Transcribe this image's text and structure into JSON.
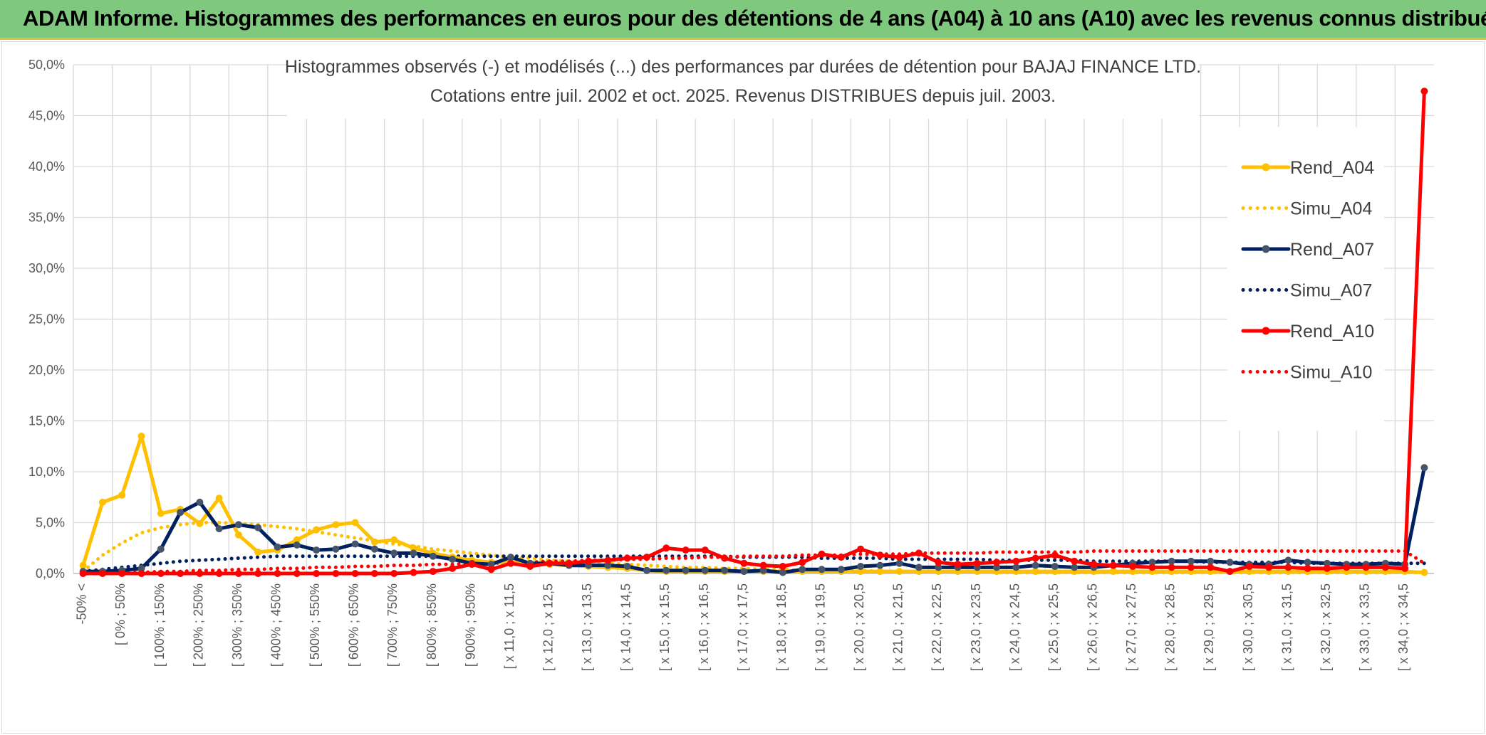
{
  "banner": {
    "title": "ADAM Informe. Histogrammes des performances en euros pour des détentions de 4 ans (A04) à 10 ans (A10) avec les revenus connus distribués",
    "bg_color": "#7fc97f"
  },
  "chart_data": {
    "type": "line",
    "title": "Histogrammes observés (-) et modélisés (...) des performances par durées de détention pour BAJAJ FINANCE LTD.",
    "subtitle": "Cotations entre juil. 2002 et oct. 2025. Revenus DISTRIBUES depuis juil. 2003.",
    "xlabel": "",
    "ylabel": "",
    "ylim": [
      0,
      50
    ],
    "y_ticks": [
      "0,0%",
      "5,0%",
      "10,0%",
      "15,0%",
      "20,0%",
      "25,0%",
      "30,0%",
      "35,0%",
      "40,0%",
      "45,0%",
      "50,0%"
    ],
    "grid": true,
    "legend_position": "right",
    "category_count": 70,
    "x_tick_labels": [
      "-50% <",
      "[ 0% ; 50%",
      "[ 100% ; 150%",
      "[ 200% ; 250%",
      "[ 300% ; 350%",
      "[ 400% ; 450%",
      "[ 500% ; 550%",
      "[ 600% ; 650%",
      "[ 700% ; 750%",
      "[ 800% ; 850%",
      "[ 900% ; 950%",
      "[ x 11,0 ; x 11,5",
      "[ x 12,0 ; x 12,5",
      "[ x 13,0 ; x 13,5",
      "[ x 14,0 ; x 14,5",
      "[ x 15,0 ; x 15,5",
      "[ x 16,0 ; x 16,5",
      "[ x 17,0 ; x 17,5",
      "[ x 18,0 ; x 18,5",
      "[ x 19,0 ; x 19,5",
      "[ x 20,0 ; x 20,5",
      "[ x 21,0 ; x 21,5",
      "[ x 22,0 ; x 22,5",
      "[ x 23,0 ; x 23,5",
      "[ x 24,0 ; x 24,5",
      "[ x 25,0 ; x 25,5",
      "[ x 26,0 ; x 26,5",
      "[ x 27,0 ; x 27,5",
      "[ x 28,0 ; x 28,5",
      "[ x 29,0 ; x 29,5",
      "[ x 30,0 ; x 30,5",
      "[ x 31,0 ; x 31,5",
      "[ x 32,0 ; x 32,5",
      "[ x 33,0 ; x 33,5",
      "[ x 34,0 ; x 34,5"
    ],
    "series": [
      {
        "name": "Rend_A04",
        "color": "#ffc000",
        "style": "solid",
        "marker": true,
        "values": [
          0.8,
          7.0,
          7.7,
          13.5,
          5.9,
          6.3,
          4.9,
          7.4,
          3.8,
          2.1,
          2.3,
          3.3,
          4.3,
          4.8,
          5.0,
          3.1,
          3.3,
          2.5,
          2.0,
          1.6,
          1.3,
          1.1,
          1.1,
          1.0,
          0.9,
          0.8,
          0.7,
          0.6,
          0.5,
          0.3,
          0.2,
          0.2,
          0.2,
          0.2,
          0.2,
          0.2,
          0.2,
          0.2,
          0.2,
          0.2,
          0.2,
          0.2,
          0.2,
          0.2,
          0.2,
          0.2,
          0.2,
          0.2,
          0.2,
          0.2,
          0.2,
          0.2,
          0.2,
          0.2,
          0.2,
          0.2,
          0.2,
          0.2,
          0.2,
          0.2,
          0.2,
          0.2,
          0.2,
          0.2,
          0.2,
          0.2,
          0.2,
          0.2,
          0.2,
          0.1
        ]
      },
      {
        "name": "Simu_A04",
        "color": "#ffc000",
        "style": "dotted",
        "marker": false,
        "values": [
          0.2,
          1.8,
          3.0,
          4.0,
          4.5,
          4.8,
          5.0,
          5.0,
          4.9,
          4.8,
          4.6,
          4.4,
          4.1,
          3.8,
          3.5,
          3.2,
          2.9,
          2.7,
          2.4,
          2.2,
          2.0,
          1.8,
          1.6,
          1.5,
          1.3,
          1.2,
          1.1,
          1.0,
          0.9,
          0.8,
          0.7,
          0.6,
          0.6,
          0.5,
          0.5,
          0.4,
          0.4,
          0.3,
          0.3,
          0.3,
          0.3,
          0.2,
          0.2,
          0.2,
          0.2,
          0.2,
          0.2,
          0.1,
          0.1,
          0.1,
          0.1,
          0.1,
          0.1,
          0.1,
          0.1,
          0.1,
          0.1,
          0.1,
          0.1,
          0.1,
          0.1,
          0.1,
          0.1,
          0.1,
          0.1,
          0.1,
          0.1,
          0.1,
          0.1,
          0.1
        ]
      },
      {
        "name": "Rend_A07",
        "color": "#002060",
        "style": "solid",
        "marker": true,
        "values": [
          0.2,
          0.2,
          0.3,
          0.5,
          2.4,
          6.0,
          7.0,
          4.4,
          4.8,
          4.5,
          2.6,
          2.8,
          2.3,
          2.4,
          2.9,
          2.4,
          2.0,
          2.0,
          1.7,
          1.4,
          1.0,
          0.9,
          1.6,
          1.0,
          1.0,
          0.8,
          0.8,
          0.8,
          0.7,
          0.3,
          0.3,
          0.3,
          0.3,
          0.3,
          0.2,
          0.3,
          0.1,
          0.4,
          0.4,
          0.4,
          0.7,
          0.8,
          1.0,
          0.6,
          0.6,
          0.6,
          0.6,
          0.6,
          0.6,
          0.8,
          0.7,
          0.6,
          0.6,
          0.8,
          1.0,
          1.1,
          1.2,
          1.2,
          1.2,
          1.1,
          0.9,
          0.9,
          1.3,
          1.1,
          1.0,
          0.9,
          0.9,
          1.0,
          0.9,
          10.4
        ]
      },
      {
        "name": "Simu_A07",
        "color": "#002060",
        "style": "dotted",
        "marker": false,
        "values": [
          0.2,
          0.4,
          0.6,
          0.8,
          1.0,
          1.2,
          1.3,
          1.4,
          1.5,
          1.6,
          1.7,
          1.7,
          1.7,
          1.7,
          1.7,
          1.7,
          1.7,
          1.7,
          1.7,
          1.7,
          1.7,
          1.7,
          1.7,
          1.7,
          1.7,
          1.7,
          1.7,
          1.7,
          1.7,
          1.7,
          1.7,
          1.7,
          1.7,
          1.7,
          1.6,
          1.6,
          1.6,
          1.6,
          1.5,
          1.5,
          1.5,
          1.5,
          1.4,
          1.4,
          1.4,
          1.4,
          1.4,
          1.3,
          1.3,
          1.3,
          1.3,
          1.3,
          1.2,
          1.2,
          1.2,
          1.2,
          1.2,
          1.2,
          1.1,
          1.1,
          1.1,
          1.1,
          1.1,
          1.0,
          1.0,
          1.0,
          1.0,
          1.0,
          1.0,
          1.0
        ]
      },
      {
        "name": "Rend_A10",
        "color": "#ff0000",
        "style": "solid",
        "marker": true,
        "values": [
          0.0,
          0.0,
          0.0,
          0.0,
          0.0,
          0.0,
          0.0,
          0.0,
          0.0,
          0.0,
          0.0,
          0.0,
          0.0,
          0.0,
          0.0,
          0.0,
          0.0,
          0.1,
          0.2,
          0.5,
          0.9,
          0.4,
          1.0,
          0.7,
          1.0,
          1.0,
          1.2,
          1.3,
          1.5,
          1.6,
          2.5,
          2.3,
          2.3,
          1.5,
          1.0,
          0.8,
          0.7,
          1.1,
          1.9,
          1.6,
          2.4,
          1.8,
          1.6,
          2.0,
          1.1,
          0.9,
          1.0,
          1.1,
          1.2,
          1.5,
          1.8,
          1.2,
          0.9,
          0.8,
          0.7,
          0.6,
          0.6,
          0.6,
          0.6,
          0.2,
          0.7,
          0.6,
          0.6,
          0.5,
          0.5,
          0.6,
          0.6,
          0.6,
          0.5,
          47.4
        ]
      },
      {
        "name": "Simu_A10",
        "color": "#ff0000",
        "style": "dotted",
        "marker": false,
        "values": [
          0.0,
          0.0,
          0.1,
          0.1,
          0.2,
          0.2,
          0.3,
          0.3,
          0.4,
          0.4,
          0.5,
          0.5,
          0.6,
          0.6,
          0.7,
          0.7,
          0.8,
          0.8,
          0.9,
          0.9,
          1.0,
          1.0,
          1.1,
          1.1,
          1.2,
          1.2,
          1.3,
          1.3,
          1.4,
          1.4,
          1.5,
          1.5,
          1.6,
          1.6,
          1.7,
          1.7,
          1.7,
          1.8,
          1.8,
          1.8,
          1.9,
          1.9,
          1.9,
          2.0,
          2.0,
          2.0,
          2.0,
          2.1,
          2.1,
          2.1,
          2.1,
          2.1,
          2.2,
          2.2,
          2.2,
          2.2,
          2.2,
          2.2,
          2.2,
          2.2,
          2.2,
          2.2,
          2.2,
          2.2,
          2.2,
          2.2,
          2.2,
          2.2,
          2.2,
          1.0
        ]
      }
    ]
  }
}
